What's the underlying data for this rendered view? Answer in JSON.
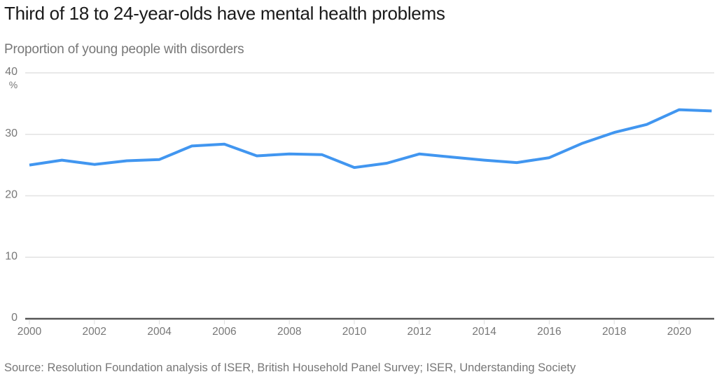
{
  "chart_data": {
    "type": "line",
    "title": "Third of 18 to 24-year-olds have mental health problems",
    "subtitle": "Proportion of young people with disorders",
    "xlabel": "",
    "ylabel": "",
    "y_unit": "%",
    "source": "Source: Resolution Foundation analysis of ISER, British Household Panel Survey; ISER, Understanding Society",
    "ylim": [
      0,
      40
    ],
    "xlim": [
      2000,
      2021
    ],
    "yticks": [
      0,
      10,
      20,
      30,
      40
    ],
    "xticks": [
      2000,
      2002,
      2004,
      2006,
      2008,
      2010,
      2012,
      2014,
      2016,
      2018,
      2020
    ],
    "grid": true,
    "legend": "none",
    "series": [
      {
        "name": "Proportion of young people with disorders",
        "color": "#4196f0",
        "x": [
          2000,
          2001,
          2002,
          2003,
          2004,
          2005,
          2006,
          2007,
          2008,
          2009,
          2010,
          2011,
          2012,
          2013,
          2014,
          2015,
          2016,
          2017,
          2018,
          2019,
          2020,
          2021
        ],
        "values": [
          25.0,
          25.8,
          25.1,
          25.7,
          25.9,
          28.1,
          28.4,
          26.5,
          26.8,
          26.7,
          24.6,
          25.3,
          26.8,
          26.3,
          25.8,
          25.4,
          26.2,
          28.5,
          30.3,
          31.6,
          34.0,
          33.8
        ]
      }
    ]
  }
}
